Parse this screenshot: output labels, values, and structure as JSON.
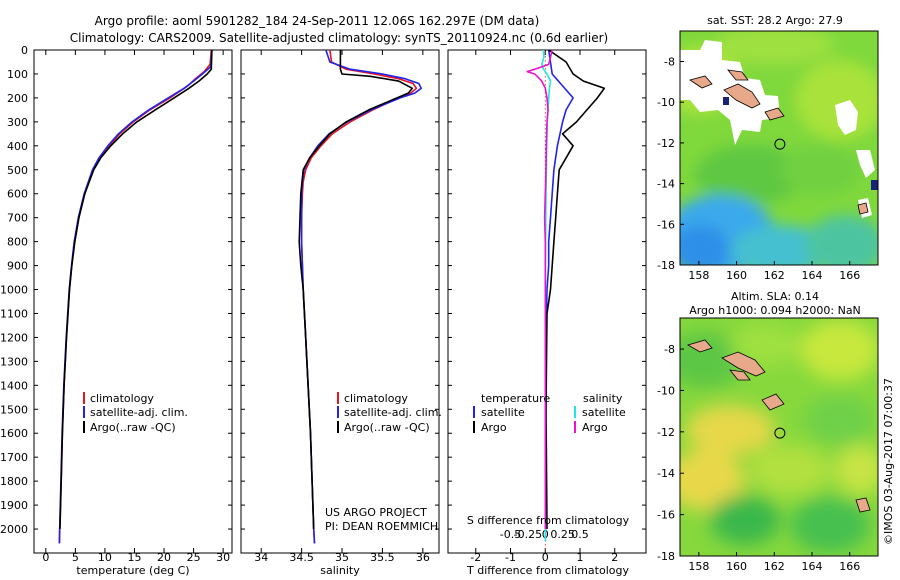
{
  "title": {
    "line1": "Argo profile: aoml 5901282_184 24-Sep-2011 12.06S 162.297E (DM data)",
    "line2": "Climatology: CARS2009. Satellite-adjusted climatology: synTS_20110924.nc (0.6d earlier)"
  },
  "side_stamp": "©IMOS 03-Aug-2017 07:00:37",
  "colors": {
    "climatology": "#e8141e",
    "satellite": "#2222ee",
    "argo": "#000000",
    "argo_s": "#e614d2",
    "sat_s": "#22e6e6"
  },
  "chart_data": [
    {
      "type": "line",
      "id": "temperature",
      "xlabel": "temperature (deg C)",
      "ylabel": "",
      "xlim": [
        -2,
        31.5
      ],
      "ylim": [
        2100,
        0
      ],
      "xticks": [
        0,
        5,
        10,
        15,
        20,
        25,
        30
      ],
      "xtick_labels": [
        "0",
        "5",
        "10",
        "15",
        "20",
        "25",
        "30"
      ],
      "yticks": [
        0,
        100,
        200,
        300,
        400,
        500,
        600,
        700,
        800,
        900,
        1000,
        1100,
        1200,
        1300,
        1400,
        1500,
        1600,
        1700,
        1800,
        1900,
        2000
      ],
      "ytick_labels": [
        "0",
        "100",
        "200",
        "300",
        "400",
        "500",
        "600",
        "700",
        "800",
        "900",
        "1000",
        "1100",
        "1200",
        "1300",
        "1400",
        "1500",
        "1600",
        "1700",
        "1800",
        "1900",
        "2000"
      ],
      "legend": [
        "climatology",
        "satellite-adj. clim.",
        "Argo(..raw -QC)"
      ],
      "series": [
        {
          "name": "climatology",
          "color": "#e8141e",
          "depth": [
            0,
            60,
            90,
            120,
            150,
            200,
            250,
            300,
            350,
            400,
            450,
            500,
            600,
            700,
            800,
            900,
            1000,
            1200,
            1400,
            1600,
            1800,
            2000,
            2060
          ],
          "value": [
            28.0,
            27.8,
            26.8,
            25.3,
            24.0,
            21.0,
            17.6,
            14.8,
            12.5,
            10.7,
            9.1,
            8.0,
            6.6,
            5.6,
            4.9,
            4.4,
            4.0,
            3.5,
            3.1,
            2.8,
            2.6,
            2.35,
            2.3
          ]
        },
        {
          "name": "satellite-adj. clim.",
          "color": "#2222ee",
          "depth": [
            0,
            70,
            100,
            130,
            160,
            200,
            250,
            300,
            350,
            400,
            450,
            500,
            600,
            700,
            800,
            900,
            1000,
            1200,
            1400,
            1600,
            1800,
            2000,
            2060
          ],
          "value": [
            28.1,
            27.9,
            26.5,
            25.0,
            23.4,
            20.7,
            17.4,
            14.6,
            12.3,
            10.5,
            9.0,
            7.9,
            6.5,
            5.5,
            4.8,
            4.35,
            3.95,
            3.45,
            3.05,
            2.75,
            2.55,
            2.35,
            2.3
          ]
        },
        {
          "name": "Argo(..raw -QC)",
          "color": "#000000",
          "depth": [
            0,
            80,
            100,
            130,
            160,
            200,
            250,
            300,
            350,
            400,
            450,
            500,
            600,
            700,
            800,
            900,
            1000,
            1200,
            1400,
            1600,
            1800,
            2000
          ],
          "value": [
            28.1,
            28.0,
            27.3,
            25.9,
            24.2,
            21.7,
            18.5,
            15.4,
            13.0,
            11.0,
            9.3,
            8.1,
            6.6,
            5.6,
            4.9,
            4.4,
            4.0,
            3.5,
            3.1,
            2.8,
            2.6,
            2.4
          ]
        }
      ]
    },
    {
      "type": "line",
      "id": "salinity",
      "xlabel": "salinity",
      "ylabel": "",
      "xlim": [
        33.75,
        36.2
      ],
      "ylim": [
        2100,
        0
      ],
      "xticks": [
        34,
        34.5,
        35,
        35.5,
        36
      ],
      "xtick_labels": [
        "34",
        "34.5",
        "35",
        "35.5",
        "36"
      ],
      "legend": [
        "climatology",
        "satellite-adj. clim.",
        "Argo(..raw -QC)"
      ],
      "annotation": [
        "US ARGO PROJECT",
        "PI: DEAN ROEMMICH"
      ],
      "series": [
        {
          "name": "climatology",
          "color": "#e8141e",
          "depth": [
            0,
            50,
            80,
            100,
            120,
            140,
            160,
            180,
            200,
            250,
            300,
            350,
            400,
            450,
            500,
            550,
            600,
            700,
            800,
            1000,
            1200,
            1400,
            1600,
            1800,
            2000,
            2060
          ],
          "value": [
            34.85,
            34.87,
            35.05,
            35.4,
            35.7,
            35.88,
            35.92,
            35.85,
            35.7,
            35.38,
            35.1,
            34.88,
            34.74,
            34.62,
            34.55,
            34.52,
            34.51,
            34.5,
            34.5,
            34.52,
            34.55,
            34.58,
            34.61,
            34.63,
            34.65,
            34.66
          ]
        },
        {
          "name": "satellite-adj. clim.",
          "color": "#2222ee",
          "depth": [
            0,
            50,
            80,
            100,
            120,
            140,
            160,
            180,
            200,
            250,
            300,
            350,
            400,
            450,
            500,
            550,
            600,
            700,
            800,
            1000,
            1200,
            1400,
            1600,
            1800,
            2000,
            2060
          ],
          "value": [
            34.8,
            34.85,
            35.1,
            35.5,
            35.78,
            35.95,
            35.98,
            35.9,
            35.72,
            35.36,
            35.06,
            34.84,
            34.7,
            34.6,
            34.53,
            34.51,
            34.5,
            34.5,
            34.5,
            34.52,
            34.55,
            34.58,
            34.61,
            34.63,
            34.65,
            34.66
          ]
        },
        {
          "name": "Argo(..raw -QC)",
          "color": "#000000",
          "depth": [
            0,
            50,
            80,
            100,
            110,
            130,
            160,
            180,
            200,
            250,
            300,
            350,
            400,
            450,
            500,
            600,
            700,
            800,
            900,
            1000,
            1200,
            1400,
            1600,
            1800,
            2000
          ],
          "value": [
            34.98,
            34.98,
            34.98,
            35.0,
            35.35,
            35.7,
            35.87,
            35.82,
            35.68,
            35.33,
            35.05,
            34.85,
            34.72,
            34.6,
            34.52,
            34.49,
            34.48,
            34.47,
            34.49,
            34.52,
            34.55,
            34.58,
            34.61,
            34.63,
            34.65
          ]
        }
      ]
    },
    {
      "type": "line",
      "id": "difference",
      "xlabel": "T difference from climatology",
      "top_label": "S difference from climatology",
      "xlim": [
        -2.8,
        2.9
      ],
      "ylim": [
        2100,
        0
      ],
      "xticks": [
        -2,
        -1,
        0,
        1,
        2
      ],
      "xtick_labels": [
        "-2",
        "-1",
        "0",
        "1",
        "2"
      ],
      "sticks": [
        -0.5,
        -0.25,
        0,
        0.25,
        0.5
      ],
      "stick_labels": [
        "-0.5",
        "-0.25",
        "0",
        "0.25",
        "0.5"
      ],
      "legend_t": {
        "title": "temperature",
        "items": [
          "satellite",
          "Argo"
        ]
      },
      "legend_s": {
        "title": "salinity",
        "items": [
          "satellite",
          "Argo"
        ]
      },
      "series": [
        {
          "name": "temperature satellite",
          "color": "#2222ee",
          "depth": [
            0,
            100,
            150,
            200,
            250,
            300,
            400,
            500,
            600,
            700,
            800,
            900,
            1000,
            1200,
            1500,
            1800,
            2050
          ],
          "value": [
            0.1,
            0.2,
            0.5,
            0.8,
            0.6,
            0.5,
            0.35,
            0.25,
            0.2,
            0.15,
            0.1,
            0.1,
            0.05,
            0.02,
            0.02,
            0.0,
            0.0
          ]
        },
        {
          "name": "temperature Argo",
          "color": "#000000",
          "depth": [
            0,
            50,
            100,
            130,
            160,
            200,
            250,
            300,
            350,
            400,
            500,
            600,
            700,
            800,
            900,
            1000,
            1100,
            1500,
            2000
          ],
          "value": [
            0.1,
            0.6,
            0.8,
            1.1,
            1.7,
            1.5,
            1.2,
            0.9,
            0.5,
            0.8,
            0.4,
            0.35,
            0.3,
            0.25,
            0.2,
            0.15,
            0.05,
            0.02,
            0.05
          ]
        },
        {
          "name": "salinity satellite",
          "color": "#22e6e6",
          "depth": [
            0,
            30,
            60,
            80,
            100,
            130,
            160,
            200,
            300,
            400,
            600,
            800,
            1000,
            1500,
            2050
          ],
          "value": [
            -0.05,
            -0.04,
            -0.1,
            -0.05,
            0.05,
            0.15,
            0.12,
            0.1,
            0.06,
            0.04,
            0.02,
            0.01,
            0.0,
            0.0,
            0.0
          ]
        },
        {
          "name": "salinity Argo",
          "color": "#e614d2",
          "depth": [
            0,
            30,
            60,
            80,
            90,
            100,
            130,
            160,
            200,
            250,
            300,
            400,
            500,
            600,
            700,
            800,
            900,
            1000,
            1500,
            2000
          ],
          "value": [
            0.2,
            0.15,
            0.1,
            -0.3,
            -0.52,
            -0.3,
            -0.1,
            0.0,
            0.05,
            0.08,
            0.05,
            0.03,
            0.02,
            0.0,
            -0.02,
            0.0,
            0.0,
            0.0,
            0.0,
            0.0
          ]
        }
      ]
    },
    {
      "type": "heatmap",
      "id": "sst-map",
      "title": "sat. SST: 28.2  Argo: 27.9",
      "xlim": [
        157,
        167.5
      ],
      "ylim": [
        -18,
        -6.5
      ],
      "xticks": [
        158,
        160,
        162,
        164,
        166
      ],
      "xtick_labels": [
        "158",
        "160",
        "162",
        "164",
        "166"
      ],
      "yticks": [
        -8,
        -10,
        -12,
        -14,
        -16,
        -18
      ],
      "ytick_labels": [
        "-8",
        "-10",
        "-12",
        "-14",
        "-16",
        "-18"
      ],
      "marker": {
        "lon": 162.297,
        "lat": -12.06
      }
    },
    {
      "type": "heatmap",
      "id": "sla-map",
      "title_line1": "Altim. SLA: 0.14",
      "title_line2": "Argo h1000: 0.094 h2000: NaN",
      "xlim": [
        157,
        167.5
      ],
      "ylim": [
        -18,
        -6.5
      ],
      "xticks": [
        158,
        160,
        162,
        164,
        166
      ],
      "xtick_labels": [
        "158",
        "160",
        "162",
        "164",
        "166"
      ],
      "yticks": [
        -8,
        -10,
        -12,
        -14,
        -16,
        -18
      ],
      "ytick_labels": [
        "-8",
        "-10",
        "-12",
        "-14",
        "-16",
        "-18"
      ],
      "marker": {
        "lon": 162.297,
        "lat": -12.06
      }
    }
  ]
}
